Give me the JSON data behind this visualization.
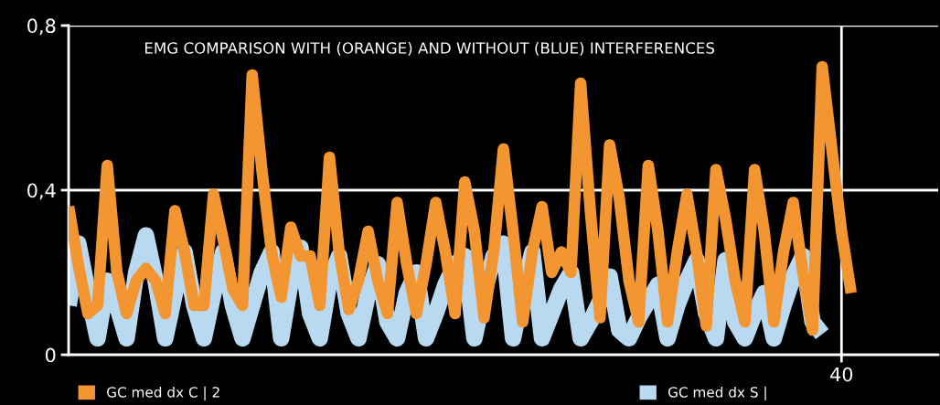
{
  "chart_data": {
    "type": "line",
    "title": "EMG COMPARISON WITH (ORANGE) AND WITHOUT (BLUE) INTERFERENCES",
    "categories": [
      null,
      null,
      null,
      null,
      null,
      null,
      null,
      null,
      null,
      null,
      null,
      null,
      null,
      null,
      null,
      null,
      null,
      null,
      null,
      null,
      null,
      null,
      null,
      null,
      null,
      null,
      null,
      null,
      null,
      null,
      null,
      null,
      null,
      null,
      null,
      null,
      null,
      null,
      null,
      null,
      null,
      null,
      null,
      null,
      null,
      null,
      null,
      null,
      null,
      null,
      null,
      null,
      null,
      null,
      null,
      null,
      null,
      null,
      null,
      null,
      null,
      null,
      null,
      null,
      null,
      null,
      null,
      null,
      null,
      null,
      null,
      null,
      null,
      null,
      null,
      null,
      null,
      null,
      null,
      null,
      "40",
      null,
      null,
      null,
      null,
      null,
      null,
      null,
      null,
      null,
      null
    ],
    "ylim": [
      0,
      0.8
    ],
    "yticks": [
      {
        "value": 0,
        "label": "0"
      },
      {
        "value": 0.4,
        "label": "0,4"
      },
      {
        "value": 0.8,
        "label": "0,8"
      }
    ],
    "grid": true,
    "legend": "bottom",
    "line_style": "solid",
    "series": [
      {
        "name": "GC med dx S |",
        "color": "#b9d9f0",
        "values": [
          0.12,
          0.27,
          0.15,
          0.04,
          0.18,
          0.12,
          0.04,
          0.2,
          0.29,
          0.18,
          0.04,
          0.15,
          0.25,
          0.12,
          0.04,
          0.15,
          0.25,
          0.12,
          0.04,
          0.12,
          0.2,
          0.25,
          0.04,
          0.18,
          0.26,
          0.1,
          0.04,
          0.18,
          0.24,
          0.1,
          0.04,
          0.15,
          0.22,
          0.08,
          0.04,
          0.15,
          0.2,
          0.04,
          0.1,
          0.17,
          0.22,
          0.24,
          0.04,
          0.15,
          0.24,
          0.27,
          0.04,
          0.15,
          0.25,
          0.04,
          0.1,
          0.16,
          0.2,
          0.04,
          0.08,
          0.13,
          0.19,
          0.06,
          0.04,
          0.09,
          0.13,
          0.17,
          0.04,
          0.12,
          0.18,
          0.23,
          0.1,
          0.04,
          0.23,
          0.08,
          0.04,
          0.1,
          0.15,
          0.04,
          0.12,
          0.19,
          0.24,
          0.08,
          0.05,
          null,
          null,
          null,
          null,
          null,
          null,
          null,
          null,
          null,
          null,
          null,
          null
        ]
      },
      {
        "name": "GC med dx C | 2",
        "color": "#f39530",
        "values": [
          0.36,
          0.22,
          0.1,
          0.12,
          0.46,
          0.2,
          0.1,
          0.18,
          0.21,
          0.18,
          0.1,
          0.35,
          0.25,
          0.12,
          0.12,
          0.39,
          0.28,
          0.16,
          0.12,
          0.68,
          0.45,
          0.25,
          0.14,
          0.31,
          0.24,
          0.24,
          0.12,
          0.48,
          0.25,
          0.11,
          0.18,
          0.3,
          0.18,
          0.1,
          0.37,
          0.22,
          0.1,
          0.22,
          0.37,
          0.25,
          0.1,
          0.42,
          0.3,
          0.09,
          0.25,
          0.5,
          0.3,
          0.08,
          0.25,
          0.36,
          0.2,
          0.25,
          0.2,
          0.66,
          0.35,
          0.09,
          0.51,
          0.38,
          0.18,
          0.08,
          0.46,
          0.3,
          0.08,
          0.25,
          0.39,
          0.25,
          0.07,
          0.45,
          0.33,
          0.18,
          0.08,
          0.45,
          0.3,
          0.08,
          0.25,
          0.37,
          0.2,
          0.06,
          0.7,
          0.5,
          0.3,
          0.15,
          null,
          null,
          null,
          null,
          null,
          null,
          null,
          null,
          null
        ]
      }
    ]
  }
}
